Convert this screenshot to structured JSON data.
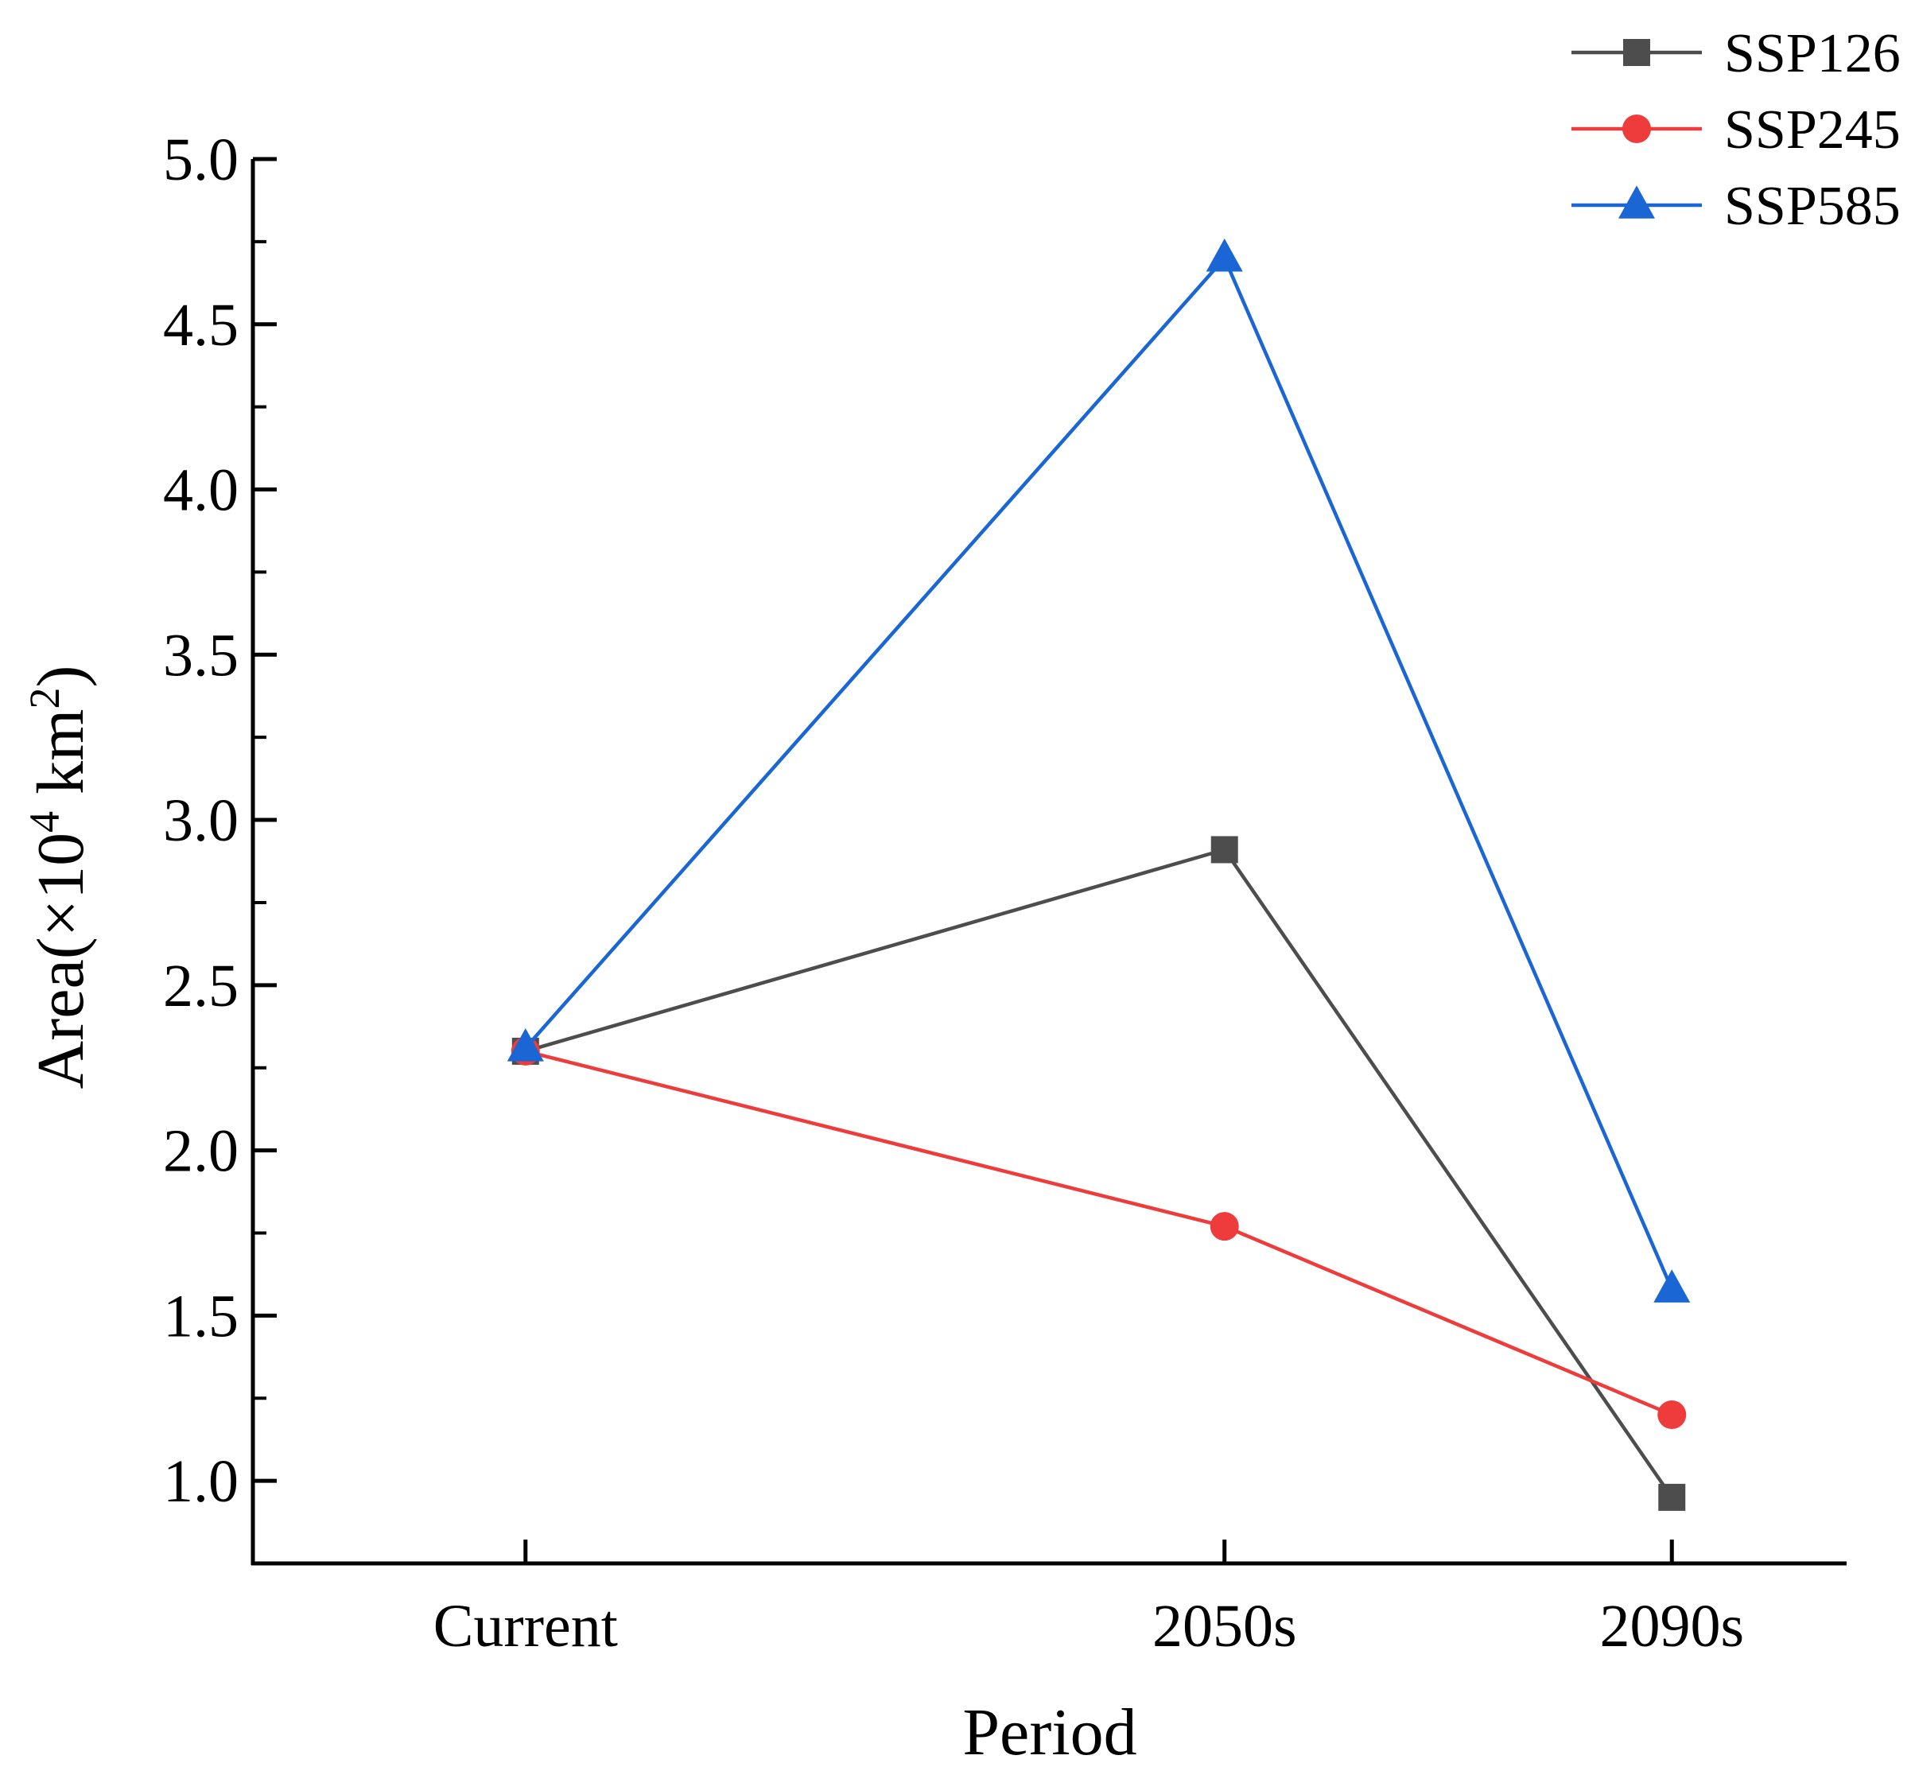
{
  "chart_data": {
    "type": "line",
    "title": "",
    "xlabel": "Period",
    "ylabel": "Area(×10⁴ km²)",
    "ylabel_parts": {
      "prefix": "Area(×10",
      "exp1": "4",
      "middle": " km",
      "exp2": "2",
      "suffix": ")"
    },
    "categories": [
      "Current",
      "2050s",
      "2090s"
    ],
    "x_positions": [
      0,
      1,
      1.64
    ],
    "xlim": [
      -0.39,
      1.89
    ],
    "ylim": [
      0.75,
      5.0
    ],
    "yticks": [
      1.0,
      1.5,
      2.0,
      2.5,
      3.0,
      3.5,
      4.0,
      4.5,
      5.0
    ],
    "ytick_labels": [
      "1.0",
      "1.5",
      "2.0",
      "2.5",
      "3.0",
      "3.5",
      "4.0",
      "4.5",
      "5.0"
    ],
    "legend_position": "top-right",
    "series": [
      {
        "name": "SSP126",
        "values": [
          2.3,
          2.91,
          0.95
        ],
        "color": "#4d4d4d",
        "marker": "square"
      },
      {
        "name": "SSP245",
        "values": [
          2.3,
          1.77,
          1.2
        ],
        "color": "#ee3b3b",
        "marker": "circle"
      },
      {
        "name": "SSP585",
        "values": [
          2.31,
          4.7,
          1.58
        ],
        "color": "#1a66d4",
        "marker": "triangle"
      }
    ]
  }
}
